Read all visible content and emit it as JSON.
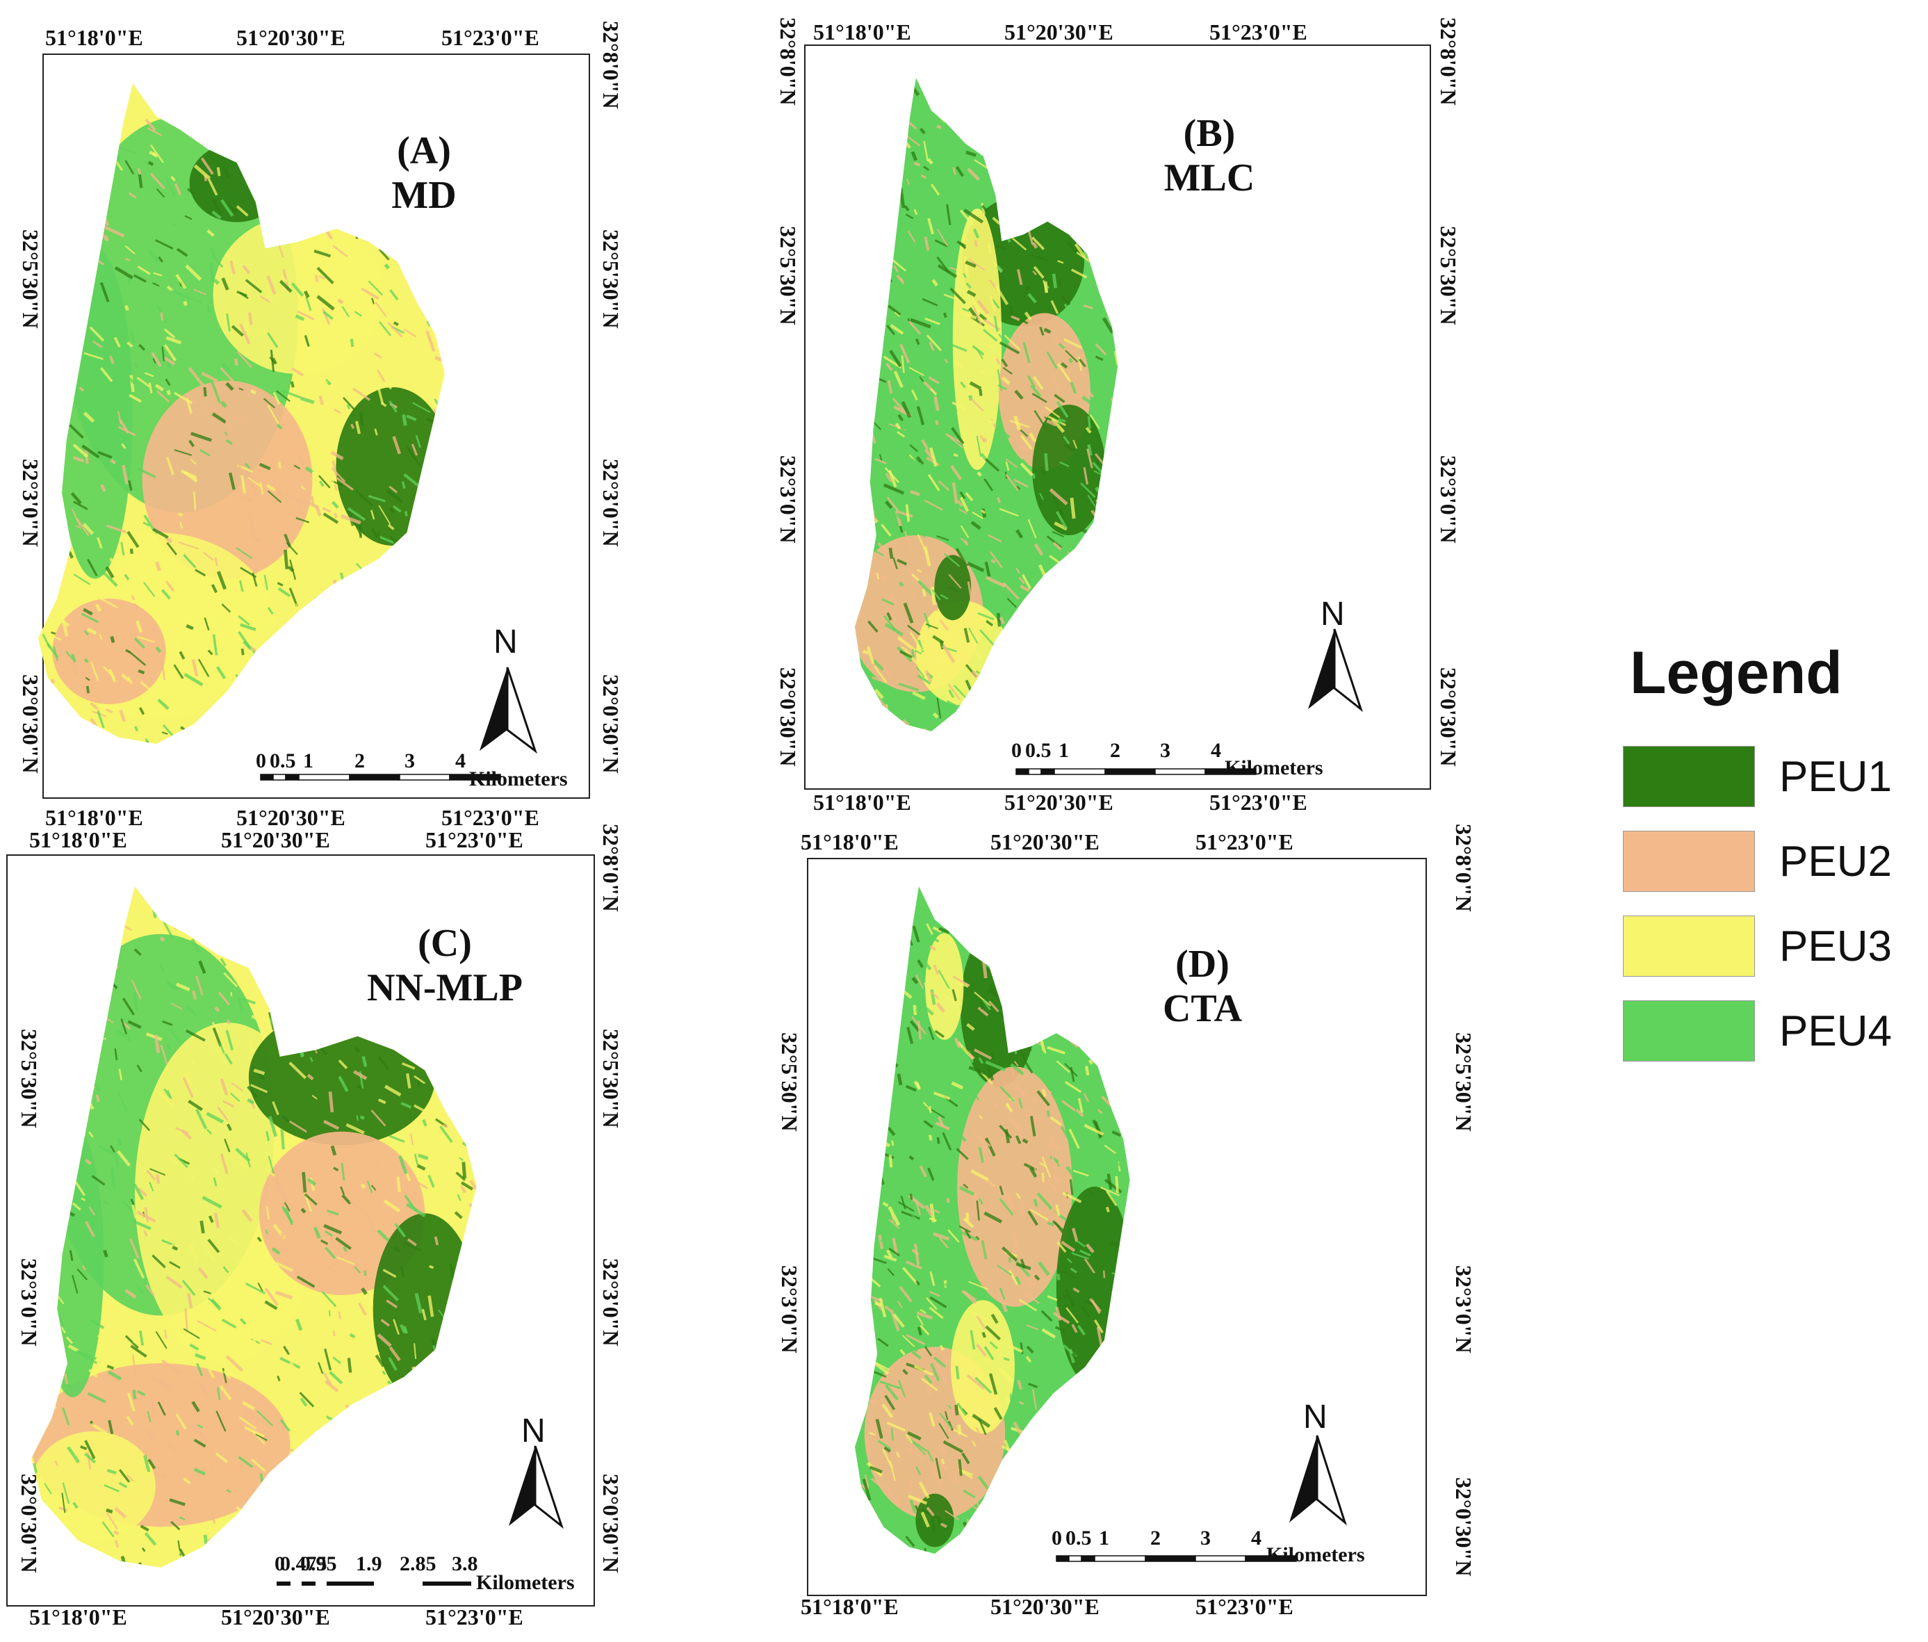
{
  "colors": {
    "PEU1": "#2e7d12",
    "PEU2": "#f4b98a",
    "PEU3": "#f7f56b",
    "PEU4": "#5fd35c"
  },
  "legend": {
    "title": "Legend",
    "items": [
      {
        "label": "PEU1",
        "color": "#2e7d12"
      },
      {
        "label": "PEU2",
        "color": "#f4b98a"
      },
      {
        "label": "PEU3",
        "color": "#f7f56b"
      },
      {
        "label": "PEU4",
        "color": "#5fd35c"
      }
    ]
  },
  "panels": [
    {
      "id": "A",
      "letter": "(A)",
      "method": "MD",
      "lon_ticks": [
        "51°18'0\"E",
        "51°20'30\"E",
        "51°23'0\"E"
      ],
      "lat_ticks": [
        "32°8'0\"N",
        "32°5'30\"N",
        "32°3'0\"N",
        "32°0'30\"N"
      ],
      "north": "N",
      "scale_ticks": [
        "0",
        "0.5",
        "1",
        "2",
        "3",
        "4"
      ],
      "scale_unit": "Kilometers"
    },
    {
      "id": "B",
      "letter": "(B)",
      "method": "MLC",
      "lon_ticks": [
        "51°18'0\"E",
        "51°20'30\"E",
        "51°23'0\"E"
      ],
      "lat_ticks": [
        "32°8'0\"N",
        "32°5'30\"N",
        "32°3'0\"N",
        "32°0'30\"N"
      ],
      "north": "N",
      "scale_ticks": [
        "0",
        "0.5",
        "1",
        "2",
        "3",
        "4"
      ],
      "scale_unit": "Kilometers"
    },
    {
      "id": "C",
      "letter": "(C)",
      "method": "NN-MLP",
      "lon_ticks": [
        "51°18'0\"E",
        "51°20'30\"E",
        "51°23'0\"E"
      ],
      "lat_ticks": [
        "32°8'0\"N",
        "32°5'30\"N",
        "32°3'0\"N",
        "32°0'30\"N"
      ],
      "north": "N",
      "scale_ticks": [
        "0",
        "0.475",
        "0.95",
        "1.9",
        "2.85",
        "3.8"
      ],
      "scale_unit": "Kilometers"
    },
    {
      "id": "D",
      "letter": "(D)",
      "method": "CTA",
      "lon_ticks": [
        "51°18'0\"E",
        "51°20'30\"E",
        "51°23'0\"E"
      ],
      "lat_ticks": [
        "32°8'0\"N",
        "32°5'30\"N",
        "32°3'0\"N",
        "32°0'30\"N"
      ],
      "north": "N",
      "scale_ticks": [
        "0",
        "0.5",
        "1",
        "2",
        "3",
        "4"
      ],
      "scale_unit": "Kilometers"
    }
  ]
}
